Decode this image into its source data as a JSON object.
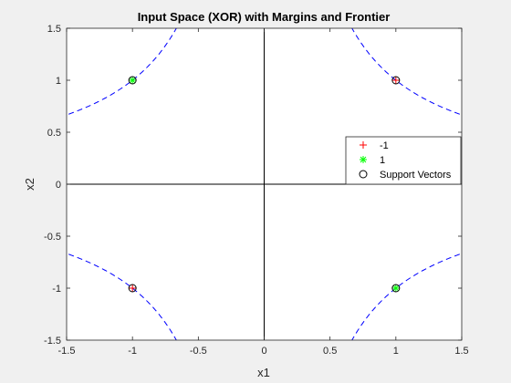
{
  "chart_data": {
    "type": "scatter",
    "title": "Input Space (XOR) with Margins and Frontier",
    "xlabel": "x1",
    "ylabel": "x2",
    "xlim": [
      -1.5,
      1.5
    ],
    "ylim": [
      -1.5,
      1.5
    ],
    "xticks": [
      -1.5,
      -1,
      -0.5,
      0,
      0.5,
      1,
      1.5
    ],
    "xtick_labels": [
      "-1.5",
      "-1",
      "-0.5",
      "0",
      "0.5",
      "1",
      "1.5"
    ],
    "yticks": [
      -1.5,
      -1,
      -0.5,
      0,
      0.5,
      1,
      1.5
    ],
    "ytick_labels": [
      "-1.5",
      "-1",
      "-0.5",
      "0",
      "0.5",
      "1",
      "1.5"
    ],
    "grid": false,
    "axes_lines": {
      "x_zero": true,
      "y_zero": true,
      "color": "#000000"
    },
    "series": [
      {
        "name": "-1",
        "marker": "plus",
        "color": "#ff0000",
        "points": [
          [
            1,
            1
          ],
          [
            -1,
            -1
          ]
        ]
      },
      {
        "name": "1",
        "marker": "asterisk",
        "color": "#00ff00",
        "points": [
          [
            -1,
            1
          ],
          [
            1,
            -1
          ]
        ]
      },
      {
        "name": "Support Vectors",
        "marker": "circle",
        "color": "#000000",
        "points": [
          [
            -1,
            1
          ],
          [
            1,
            1
          ],
          [
            -1,
            -1
          ],
          [
            1,
            -1
          ]
        ]
      }
    ],
    "margin_curves": {
      "description": "dashed hyperbolic margins x1*x2 = +/-1",
      "color": "#0000ff",
      "style": "dashed",
      "level": 1
    },
    "legend": {
      "position": "right",
      "entries": [
        "-1",
        "1",
        "Support Vectors"
      ]
    }
  }
}
